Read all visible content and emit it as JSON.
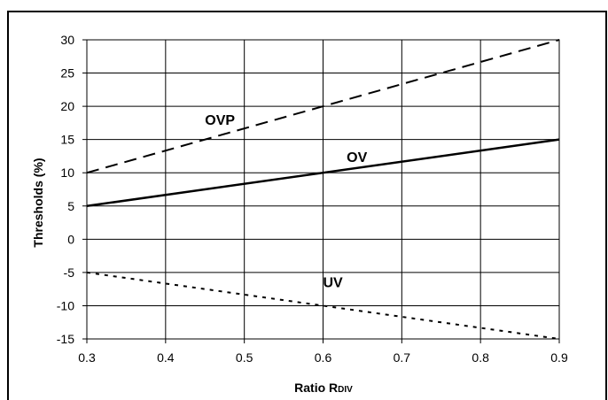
{
  "chart_data": {
    "type": "line",
    "title": "",
    "xlabel": "Ratio R",
    "xlabel_subscript": "DIV",
    "ylabel": "Thresholds (%)",
    "xlim": [
      0.3,
      0.9
    ],
    "ylim": [
      -15,
      30
    ],
    "grid": true,
    "x_ticks": [
      0.3,
      0.4,
      0.5,
      0.6,
      0.7,
      0.8,
      0.9
    ],
    "x_tick_labels": [
      "0.3",
      "0.4",
      "0.5",
      "0.6",
      "0.7",
      "0.8",
      "0.9"
    ],
    "y_ticks": [
      -15,
      -10,
      -5,
      0,
      5,
      10,
      15,
      20,
      25,
      30
    ],
    "y_tick_labels": [
      "-15",
      "-10",
      "-5",
      "0",
      "5",
      "10",
      "15",
      "20",
      "25",
      "30"
    ],
    "series": [
      {
        "name": "OVP",
        "style": "dashed",
        "x": [
          0.3,
          0.9
        ],
        "y": [
          10,
          30
        ]
      },
      {
        "name": "OV",
        "style": "solid",
        "x": [
          0.3,
          0.9
        ],
        "y": [
          5,
          15
        ]
      },
      {
        "name": "UV",
        "style": "dotted",
        "x": [
          0.3,
          0.9
        ],
        "y": [
          -5,
          -15
        ]
      }
    ],
    "series_label_anchors": [
      {
        "x": 0.45,
        "y": 17.2
      },
      {
        "x": 0.63,
        "y": 11.6
      },
      {
        "x": 0.6,
        "y": -7.2
      }
    ]
  }
}
